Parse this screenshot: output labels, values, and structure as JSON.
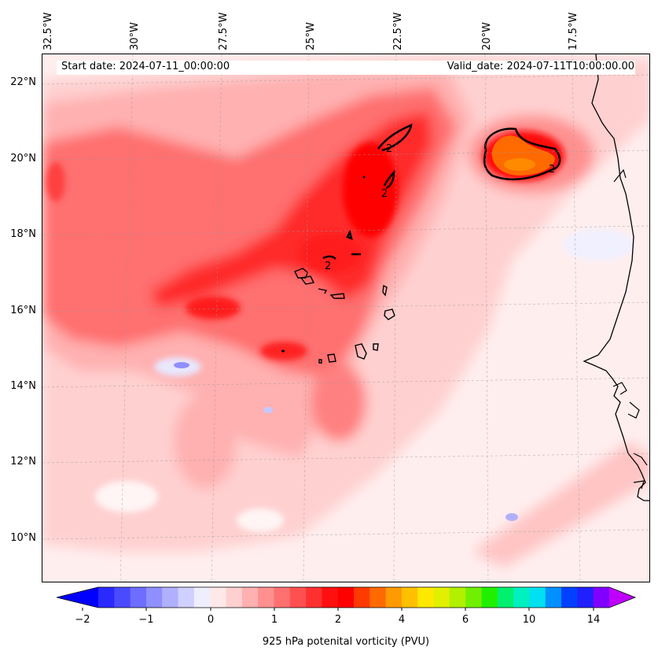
{
  "map": {
    "lon_labels": [
      "32.5°W",
      "30°W",
      "27.5°W",
      "25°W",
      "22.5°W",
      "20°W",
      "17.5°W"
    ],
    "lat_labels": [
      "22°N",
      "20°N",
      "18°N",
      "16°N",
      "14°N",
      "12°N",
      "10°N"
    ],
    "start_date": "Start date: 2024-07-11_00:00:00",
    "valid_date": "Valid_date: 2024-07-11T10:00:00.00",
    "contour_label": "2",
    "colors": {
      "background_low": "#ffeeee",
      "light": "#ffd9d9",
      "medium": "#ffb0b0",
      "strong": "#ff7070",
      "red": "#ff2a2a",
      "deep_red": "#ff0000",
      "orange": "#ff7a00",
      "negative_light": "#eeeeff",
      "negative_mid": "#aab0ff",
      "coast": "#000000"
    }
  },
  "colorbar": {
    "tick_labels": [
      "−2",
      "−1",
      "0",
      "1",
      "2",
      "4",
      "6",
      "10",
      "14"
    ],
    "label": "925 hPa potenital vorticity (PVU)",
    "colors": [
      "#0000ff",
      "#2a2aff",
      "#4a4aff",
      "#6d6dff",
      "#8f8fff",
      "#b0b0ff",
      "#d0d0ff",
      "#eeeeff",
      "#ffe8e8",
      "#ffd0d0",
      "#ffb0b0",
      "#ff9090",
      "#ff7070",
      "#ff5050",
      "#ff3030",
      "#ff1010",
      "#ff0000",
      "#ff3a00",
      "#ff6a00",
      "#ff9a00",
      "#ffc000",
      "#ffe800",
      "#e0f000",
      "#b0f000",
      "#70f000",
      "#20f000",
      "#00f070",
      "#00f0c0",
      "#00e0f0",
      "#0090ff",
      "#0040ff",
      "#2020ff",
      "#8000ff",
      "#c000ff"
    ]
  }
}
